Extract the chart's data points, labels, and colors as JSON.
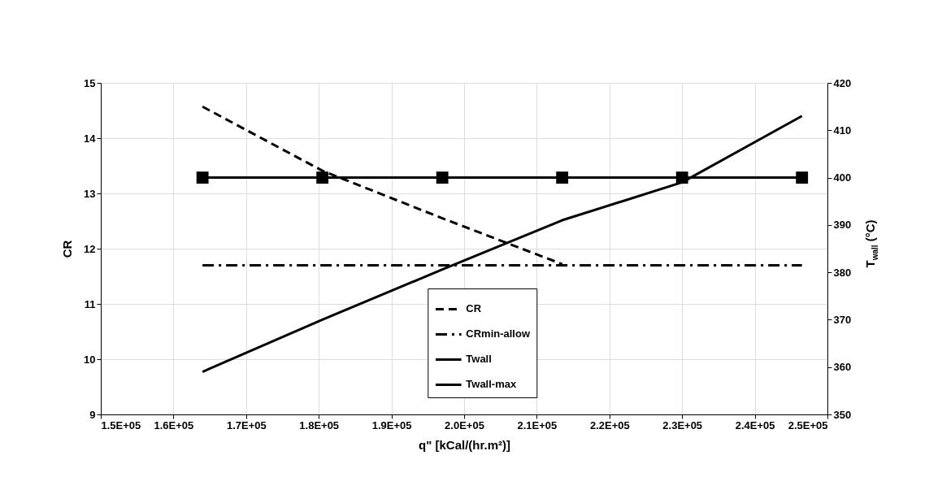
{
  "chart_data": {
    "type": "line",
    "xlabel": "q\" [kCal/(hr.m²)]",
    "ylabel": "CR",
    "y2label": "T$_{wall}$ (°C)",
    "x": [
      164000,
      180500,
      197000,
      213500,
      230000,
      246500
    ],
    "xlim": [
      150000,
      250000
    ],
    "xticks": [
      {
        "value": 150000,
        "label": "1.5E+05"
      },
      {
        "value": 160000,
        "label": "1.6E+05"
      },
      {
        "value": 170000,
        "label": "1.7E+05"
      },
      {
        "value": 180000,
        "label": "1.8E+05"
      },
      {
        "value": 190000,
        "label": "1.9E+05"
      },
      {
        "value": 200000,
        "label": "2.0E+05"
      },
      {
        "value": 210000,
        "label": "2.1E+05"
      },
      {
        "value": 220000,
        "label": "2.2E+05"
      },
      {
        "value": 230000,
        "label": "2.3E+05"
      },
      {
        "value": 240000,
        "label": "2.4E+05"
      },
      {
        "value": 250000,
        "label": "2.5E+05"
      }
    ],
    "ylim": [
      9,
      15
    ],
    "yticks": [
      9,
      10,
      11,
      12,
      13,
      14,
      15
    ],
    "y2lim": [
      350,
      420
    ],
    "y2ticks": [
      350,
      360,
      370,
      380,
      390,
      400,
      410,
      420
    ],
    "grid": true,
    "legend": "bottom",
    "series": [
      {
        "name": "CR",
        "color": "#000000",
        "line_style": "dashed",
        "marker": "none",
        "x": [
          164000,
          180500,
          197000,
          213500
        ],
        "values": [
          14.57,
          13.41,
          12.55,
          11.72
        ]
      },
      {
        "name": "CRmin-allow",
        "color": "#000000",
        "line_style": "dashdot",
        "marker": "none",
        "values": [
          11.7,
          11.7,
          11.7,
          11.7,
          11.7,
          11.7
        ]
      },
      {
        "name": "Twall",
        "color": "#000000",
        "line_style": "solid",
        "marker": "none",
        "axis": "y2",
        "values": [
          359,
          370,
          380.6,
          391,
          399,
          413
        ]
      },
      {
        "name": "Twall-max",
        "color": "#000000",
        "line_style": "solid",
        "marker": "square",
        "axis": "y2",
        "values": [
          400,
          400,
          400,
          400,
          400,
          400
        ]
      }
    ]
  }
}
